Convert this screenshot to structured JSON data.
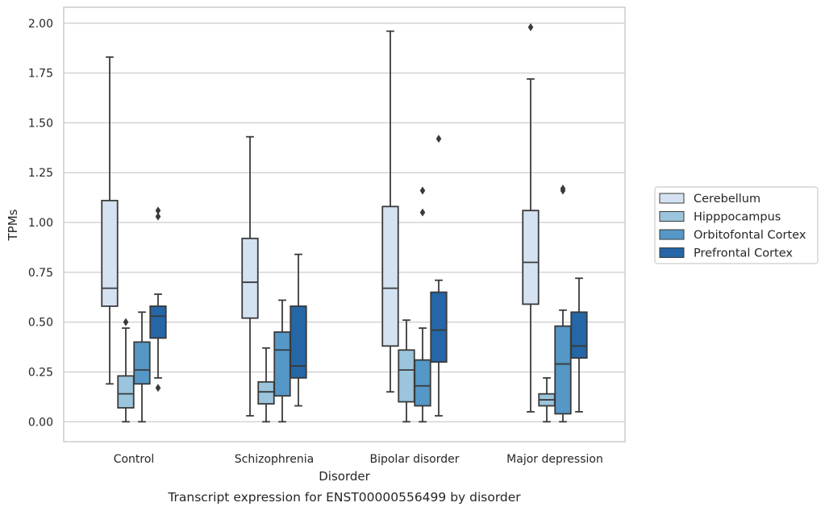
{
  "chart_data": {
    "type": "box",
    "caption": "Transcript expression for ENST00000556499 by disorder",
    "xlabel": "Disorder",
    "ylabel": "TPMs",
    "categories": [
      "Control",
      "Schizophrenia",
      "Bipolar disorder",
      "Major depression"
    ],
    "ylim": [
      -0.1,
      2.08
    ],
    "yticks": [
      0.0,
      0.25,
      0.5,
      0.75,
      1.0,
      1.25,
      1.5,
      1.75,
      2.0
    ],
    "ytick_labels": [
      "0.00",
      "0.25",
      "0.50",
      "0.75",
      "1.00",
      "1.25",
      "1.50",
      "1.75",
      "2.00"
    ],
    "grid": "horizontal",
    "legend_position": "right",
    "series": [
      {
        "name": "Cerebellum",
        "color": "#d4e2f1",
        "boxes": [
          {
            "whisker_low": 0.19,
            "q1": 0.58,
            "median": 0.67,
            "q3": 1.11,
            "whisker_high": 1.83,
            "outliers": []
          },
          {
            "whisker_low": 0.03,
            "q1": 0.52,
            "median": 0.7,
            "q3": 0.92,
            "whisker_high": 1.43,
            "outliers": []
          },
          {
            "whisker_low": 0.15,
            "q1": 0.38,
            "median": 0.67,
            "q3": 1.08,
            "whisker_high": 1.96,
            "outliers": []
          },
          {
            "whisker_low": 0.05,
            "q1": 0.59,
            "median": 0.8,
            "q3": 1.06,
            "whisker_high": 1.72,
            "outliers": [
              1.98
            ]
          }
        ]
      },
      {
        "name": "Hipppocampus",
        "color": "#9ac5dc",
        "boxes": [
          {
            "whisker_low": 0.0,
            "q1": 0.07,
            "median": 0.14,
            "q3": 0.23,
            "whisker_high": 0.47,
            "outliers": [
              0.5
            ]
          },
          {
            "whisker_low": 0.0,
            "q1": 0.09,
            "median": 0.15,
            "q3": 0.2,
            "whisker_high": 0.37,
            "outliers": []
          },
          {
            "whisker_low": 0.0,
            "q1": 0.1,
            "median": 0.26,
            "q3": 0.36,
            "whisker_high": 0.51,
            "outliers": []
          },
          {
            "whisker_low": 0.0,
            "q1": 0.08,
            "median": 0.11,
            "q3": 0.14,
            "whisker_high": 0.22,
            "outliers": []
          }
        ]
      },
      {
        "name": "Orbitofontal Cortex",
        "color": "#5597c6",
        "boxes": [
          {
            "whisker_low": 0.0,
            "q1": 0.19,
            "median": 0.26,
            "q3": 0.4,
            "whisker_high": 0.55,
            "outliers": []
          },
          {
            "whisker_low": 0.0,
            "q1": 0.13,
            "median": 0.36,
            "q3": 0.45,
            "whisker_high": 0.61,
            "outliers": []
          },
          {
            "whisker_low": 0.0,
            "q1": 0.08,
            "median": 0.18,
            "q3": 0.31,
            "whisker_high": 0.47,
            "outliers": [
              1.05,
              1.16
            ]
          },
          {
            "whisker_low": 0.0,
            "q1": 0.04,
            "median": 0.29,
            "q3": 0.48,
            "whisker_high": 0.56,
            "outliers": [
              1.16,
              1.17
            ]
          }
        ]
      },
      {
        "name": "Prefrontal Cortex",
        "color": "#2466a6",
        "boxes": [
          {
            "whisker_low": 0.22,
            "q1": 0.42,
            "median": 0.53,
            "q3": 0.58,
            "whisker_high": 0.64,
            "outliers": [
              0.17,
              1.03,
              1.06
            ]
          },
          {
            "whisker_low": 0.08,
            "q1": 0.22,
            "median": 0.28,
            "q3": 0.58,
            "whisker_high": 0.84,
            "outliers": []
          },
          {
            "whisker_low": 0.03,
            "q1": 0.3,
            "median": 0.46,
            "q3": 0.65,
            "whisker_high": 0.71,
            "outliers": [
              1.42
            ]
          },
          {
            "whisker_low": 0.05,
            "q1": 0.32,
            "median": 0.38,
            "q3": 0.55,
            "whisker_high": 0.72,
            "outliers": []
          }
        ]
      }
    ]
  }
}
